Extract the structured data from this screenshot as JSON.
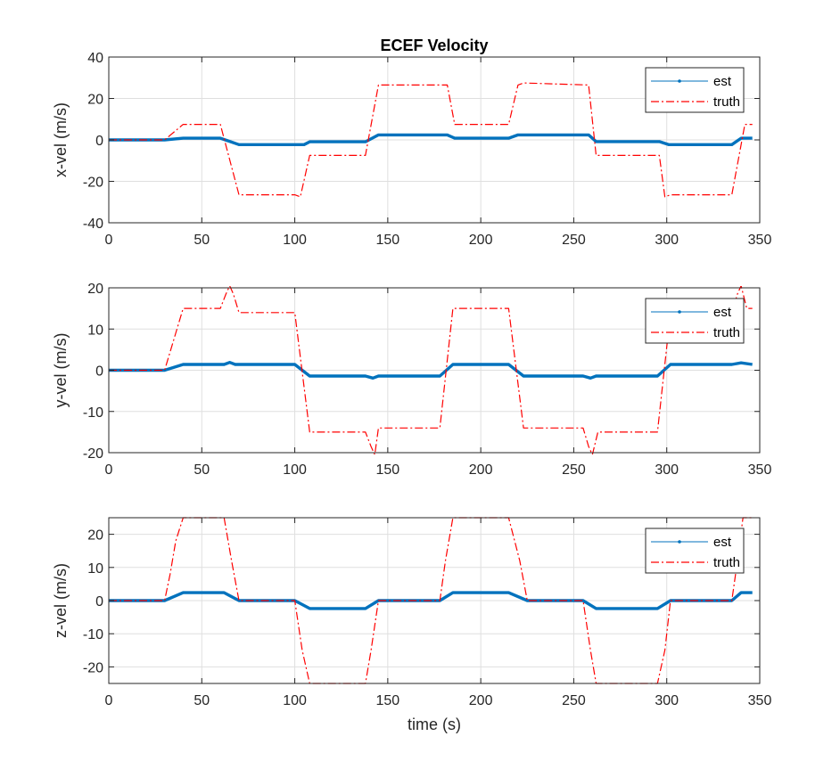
{
  "chart_data": [
    {
      "type": "line",
      "title": "ECEF Velocity",
      "xlabel": "",
      "ylabel": "x-vel (m/s)",
      "xlim": [
        0,
        350
      ],
      "ylim": [
        -40,
        40
      ],
      "xticks": [
        0,
        50,
        100,
        150,
        200,
        250,
        300,
        350
      ],
      "yticks": [
        -40,
        -20,
        0,
        20,
        40
      ],
      "grid": true,
      "legend_position": "top-right",
      "series": [
        {
          "name": "est",
          "color": "#0072BD",
          "style": "solid-point-marker",
          "x": [
            0,
            30,
            40,
            60,
            70,
            100,
            105,
            108,
            138,
            145,
            182,
            186,
            215,
            220,
            258,
            262,
            296,
            301,
            335,
            340,
            346
          ],
          "y": [
            0,
            0,
            0.8,
            0.8,
            -2.3,
            -2.3,
            -2.3,
            -0.9,
            -0.9,
            2.4,
            2.4,
            0.8,
            0.8,
            2.4,
            2.4,
            -0.8,
            -0.8,
            -2.3,
            -2.3,
            0.8,
            0.8
          ]
        },
        {
          "name": "truth",
          "color": "#FF0000",
          "style": "dash-dot",
          "x": [
            0,
            30,
            40,
            60,
            70,
            100,
            103,
            108,
            138,
            145,
            182,
            186,
            215,
            220,
            223,
            258,
            262,
            296,
            299,
            302,
            335,
            342,
            346
          ],
          "y": [
            0,
            0,
            7.5,
            7.5,
            -26.5,
            -26.5,
            -27.5,
            -7.5,
            -7.5,
            26.5,
            26.5,
            7.5,
            7.5,
            26.5,
            27.5,
            26.5,
            -7.5,
            -7.5,
            -27.5,
            -26.5,
            -26.5,
            7.5,
            7.5
          ]
        }
      ]
    },
    {
      "type": "line",
      "title": "",
      "xlabel": "",
      "ylabel": "y-vel (m/s)",
      "xlim": [
        0,
        350
      ],
      "ylim": [
        -20,
        20
      ],
      "xticks": [
        0,
        50,
        100,
        150,
        200,
        250,
        300,
        350
      ],
      "yticks": [
        -20,
        -10,
        0,
        10,
        20
      ],
      "grid": true,
      "legend_position": "top-right",
      "series": [
        {
          "name": "est",
          "color": "#0072BD",
          "style": "solid-point-marker",
          "x": [
            0,
            30,
            40,
            62,
            65,
            68,
            100,
            108,
            138,
            142,
            145,
            178,
            185,
            215,
            223,
            255,
            259,
            262,
            295,
            302,
            335,
            340,
            346
          ],
          "y": [
            0,
            0,
            1.4,
            1.4,
            1.9,
            1.4,
            1.4,
            -1.4,
            -1.4,
            -1.9,
            -1.4,
            -1.4,
            1.4,
            1.4,
            -1.4,
            -1.4,
            -1.9,
            -1.4,
            -1.4,
            1.4,
            1.4,
            1.8,
            1.4
          ]
        },
        {
          "name": "truth",
          "color": "#FF0000",
          "style": "dash-dot",
          "x": [
            0,
            30,
            40,
            60,
            63,
            65,
            67,
            70,
            100,
            108,
            138,
            141,
            143,
            145,
            178,
            185,
            215,
            223,
            255,
            258,
            260,
            263,
            295,
            302,
            335,
            338,
            340,
            343,
            346
          ],
          "y": [
            0,
            0,
            15,
            15,
            18.5,
            20.5,
            18.5,
            14,
            14,
            -15,
            -15,
            -18.5,
            -20.5,
            -14,
            -14,
            15,
            15,
            -14,
            -14,
            -18.5,
            -20.5,
            -15,
            -15,
            14,
            14,
            18.5,
            20.5,
            15,
            15
          ]
        }
      ]
    },
    {
      "type": "line",
      "title": "",
      "xlabel": "time (s)",
      "ylabel": "z-vel (m/s)",
      "xlim": [
        0,
        350
      ],
      "ylim": [
        -25,
        25
      ],
      "xticks": [
        0,
        50,
        100,
        150,
        200,
        250,
        300,
        350
      ],
      "yticks": [
        -20,
        -10,
        0,
        10,
        20
      ],
      "grid": true,
      "legend_position": "top-right",
      "series": [
        {
          "name": "est",
          "color": "#0072BD",
          "style": "solid-point-marker",
          "x": [
            0,
            30,
            40,
            62,
            70,
            100,
            108,
            138,
            145,
            178,
            185,
            215,
            225,
            255,
            262,
            295,
            302,
            335,
            340,
            346
          ],
          "y": [
            0,
            0,
            2.4,
            2.4,
            0,
            0,
            -2.4,
            -2.4,
            0,
            0,
            2.4,
            2.4,
            0,
            0,
            -2.4,
            -2.4,
            0,
            0,
            2.4,
            2.4
          ]
        },
        {
          "name": "truth",
          "color": "#FF0000",
          "style": "dash-dot",
          "x": [
            0,
            30,
            33,
            36,
            40,
            62,
            66,
            70,
            100,
            104,
            108,
            138,
            141,
            145,
            178,
            181,
            185,
            215,
            221,
            225,
            255,
            259,
            262,
            295,
            299,
            302,
            335,
            338,
            341,
            346
          ],
          "y": [
            0,
            0,
            8,
            18,
            25,
            25,
            12,
            0,
            0,
            -15,
            -25,
            -25,
            -15,
            0,
            0,
            12,
            25,
            25,
            12,
            0,
            0,
            -15,
            -25,
            -25,
            -15,
            0,
            0,
            12,
            25,
            25
          ]
        }
      ]
    }
  ]
}
